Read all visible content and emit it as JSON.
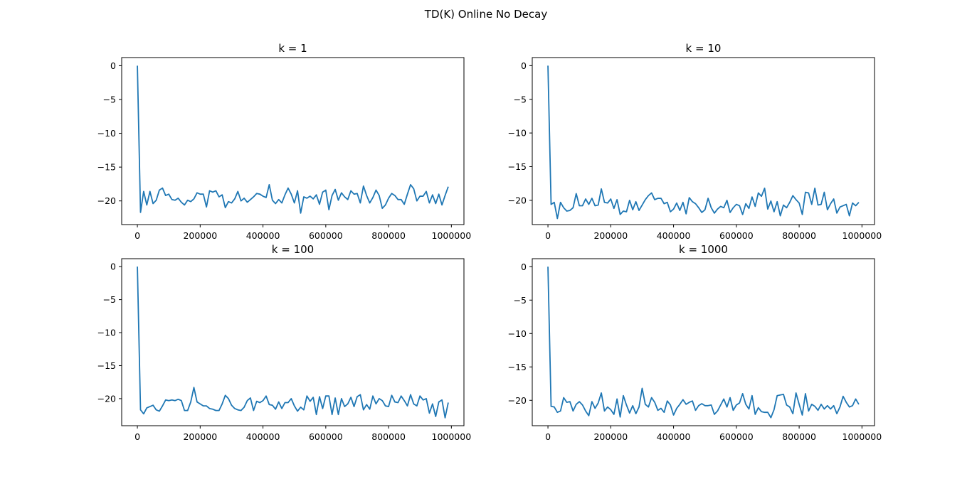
{
  "figure": {
    "title": "TD(K) Online No Decay",
    "line_color": "#1f77b4"
  },
  "chart_data": [
    {
      "type": "line",
      "title": "k = 1",
      "xlabel": "",
      "ylabel": "",
      "xlim": [
        -50000,
        1040000
      ],
      "ylim": [
        -23.5,
        1.2
      ],
      "xticks": [
        0,
        200000,
        400000,
        600000,
        800000,
        1000000
      ],
      "xtick_labels": [
        "0",
        "200000",
        "400000",
        "600000",
        "800000",
        "1000000"
      ],
      "yticks": [
        0,
        -5,
        -10,
        -15,
        -20
      ],
      "ytick_labels": [
        "0",
        "−5",
        "−10",
        "−15",
        "−20"
      ],
      "grid": false,
      "series": [
        {
          "x": [
            0,
            10000,
            20000,
            30000,
            40000,
            50000,
            60000,
            70000,
            80000,
            90000,
            100000,
            110000,
            120000,
            130000,
            140000,
            150000,
            160000,
            170000,
            180000,
            190000,
            200000,
            210000,
            220000,
            230000,
            240000,
            250000,
            260000,
            270000,
            280000,
            290000,
            300000,
            310000,
            320000,
            330000,
            340000,
            350000,
            360000,
            370000,
            380000,
            390000,
            400000,
            410000,
            420000,
            430000,
            440000,
            450000,
            460000,
            470000,
            480000,
            490000,
            500000,
            510000,
            520000,
            530000,
            540000,
            550000,
            560000,
            570000,
            580000,
            590000,
            600000,
            610000,
            620000,
            630000,
            640000,
            650000,
            660000,
            670000,
            680000,
            690000,
            700000,
            710000,
            720000,
            730000,
            740000,
            750000,
            760000,
            770000,
            780000,
            790000,
            800000,
            810000,
            820000,
            830000,
            840000,
            850000,
            860000,
            870000,
            880000,
            890000,
            900000,
            910000,
            920000,
            930000,
            940000,
            950000,
            960000,
            970000,
            980000,
            990000
          ],
          "y": [
            0,
            -21.7,
            -18.6,
            -20.6,
            -18.6,
            -20.4,
            -19.9,
            -18.4,
            -18.1,
            -19.2,
            -19.0,
            -19.8,
            -19.9,
            -19.6,
            -20.2,
            -20.6,
            -19.9,
            -20.1,
            -19.7,
            -18.8,
            -19.0,
            -19.0,
            -20.9,
            -18.5,
            -18.7,
            -18.5,
            -19.4,
            -19.1,
            -21.0,
            -20.1,
            -20.3,
            -19.7,
            -18.6,
            -20.0,
            -19.6,
            -20.2,
            -19.8,
            -19.4,
            -18.9,
            -19.0,
            -19.3,
            -19.5,
            -17.6,
            -19.9,
            -20.4,
            -19.8,
            -20.3,
            -19.1,
            -18.1,
            -19.0,
            -20.3,
            -18.5,
            -21.8,
            -19.4,
            -19.6,
            -19.3,
            -19.7,
            -19.1,
            -20.5,
            -18.7,
            -18.4,
            -21.3,
            -19.2,
            -18.3,
            -19.9,
            -18.8,
            -19.4,
            -19.8,
            -18.5,
            -19.0,
            -18.9,
            -20.3,
            -17.8,
            -19.2,
            -20.3,
            -19.5,
            -18.4,
            -19.2,
            -21.1,
            -20.6,
            -19.6,
            -18.9,
            -19.2,
            -19.8,
            -19.8,
            -20.5,
            -19.0,
            -17.6,
            -18.2,
            -20.0,
            -19.3,
            -19.3,
            -18.6,
            -20.3,
            -19.1,
            -20.4,
            -19.0,
            -20.6,
            -19.2,
            -17.9
          ]
        }
      ]
    },
    {
      "type": "line",
      "title": "k = 10",
      "xlabel": "",
      "ylabel": "",
      "xlim": [
        -50000,
        1040000
      ],
      "ylim": [
        -23.6,
        1.2
      ],
      "xticks": [
        0,
        200000,
        400000,
        600000,
        800000,
        1000000
      ],
      "xtick_labels": [
        "0",
        "200000",
        "400000",
        "600000",
        "800000",
        "1000000"
      ],
      "yticks": [
        0,
        -5,
        -10,
        -15,
        -20
      ],
      "ytick_labels": [
        "0",
        "−5",
        "−10",
        "−15",
        "−20"
      ],
      "grid": false,
      "series": [
        {
          "x": [
            0,
            10000,
            20000,
            30000,
            40000,
            50000,
            60000,
            70000,
            80000,
            90000,
            100000,
            110000,
            120000,
            130000,
            140000,
            150000,
            160000,
            170000,
            180000,
            190000,
            200000,
            210000,
            220000,
            230000,
            240000,
            250000,
            260000,
            270000,
            280000,
            290000,
            300000,
            310000,
            320000,
            330000,
            340000,
            350000,
            360000,
            370000,
            380000,
            390000,
            400000,
            410000,
            420000,
            430000,
            440000,
            450000,
            460000,
            470000,
            480000,
            490000,
            500000,
            510000,
            520000,
            530000,
            540000,
            550000,
            560000,
            570000,
            580000,
            590000,
            600000,
            610000,
            620000,
            630000,
            640000,
            650000,
            660000,
            670000,
            680000,
            690000,
            700000,
            710000,
            720000,
            730000,
            740000,
            750000,
            760000,
            770000,
            780000,
            790000,
            800000,
            810000,
            820000,
            830000,
            840000,
            850000,
            860000,
            870000,
            880000,
            890000,
            900000,
            910000,
            920000,
            930000,
            940000,
            950000,
            960000,
            970000,
            980000,
            990000
          ],
          "y": [
            0,
            -20.6,
            -20.3,
            -22.7,
            -20.3,
            -21.1,
            -21.6,
            -21.5,
            -21.1,
            -19.0,
            -20.8,
            -20.8,
            -19.8,
            -20.6,
            -19.7,
            -20.8,
            -20.7,
            -18.3,
            -20.3,
            -20.4,
            -19.8,
            -21.2,
            -19.9,
            -22.1,
            -21.6,
            -21.7,
            -20.0,
            -21.4,
            -20.2,
            -21.5,
            -20.7,
            -19.9,
            -19.3,
            -18.9,
            -19.9,
            -19.7,
            -19.7,
            -20.5,
            -20.3,
            -21.7,
            -21.3,
            -20.4,
            -21.5,
            -20.3,
            -22.0,
            -19.6,
            -20.2,
            -20.5,
            -21.1,
            -21.8,
            -21.4,
            -19.7,
            -21.1,
            -21.9,
            -21.3,
            -20.9,
            -21.1,
            -20.0,
            -21.8,
            -21.1,
            -20.6,
            -20.8,
            -22.1,
            -20.5,
            -21.2,
            -19.5,
            -20.9,
            -18.9,
            -19.4,
            -18.2,
            -21.3,
            -20.1,
            -21.7,
            -20.2,
            -22.3,
            -20.7,
            -21.1,
            -20.3,
            -19.3,
            -19.9,
            -20.4,
            -22.1,
            -18.8,
            -18.9,
            -20.6,
            -18.2,
            -20.7,
            -20.6,
            -18.8,
            -21.4,
            -20.5,
            -19.8,
            -21.9,
            -21.0,
            -20.8,
            -20.6,
            -22.3,
            -20.4,
            -20.8,
            -20.3
          ]
        }
      ]
    },
    {
      "type": "line",
      "title": "k = 100",
      "xlabel": "",
      "ylabel": "",
      "xlim": [
        -50000,
        1040000
      ],
      "ylim": [
        -24.1,
        1.2
      ],
      "xticks": [
        0,
        200000,
        400000,
        600000,
        800000,
        1000000
      ],
      "xtick_labels": [
        "0",
        "200000",
        "400000",
        "600000",
        "800000",
        "1000000"
      ],
      "yticks": [
        0,
        -5,
        -10,
        -15,
        -20
      ],
      "ytick_labels": [
        "0",
        "−5",
        "−10",
        "−15",
        "−20"
      ],
      "grid": false,
      "series": [
        {
          "x": [
            0,
            10000,
            20000,
            30000,
            40000,
            50000,
            60000,
            70000,
            80000,
            90000,
            100000,
            110000,
            120000,
            130000,
            140000,
            150000,
            160000,
            170000,
            180000,
            190000,
            200000,
            210000,
            220000,
            230000,
            240000,
            250000,
            260000,
            270000,
            280000,
            290000,
            300000,
            310000,
            320000,
            330000,
            340000,
            350000,
            360000,
            370000,
            380000,
            390000,
            400000,
            410000,
            420000,
            430000,
            440000,
            450000,
            460000,
            470000,
            480000,
            490000,
            500000,
            510000,
            520000,
            530000,
            540000,
            550000,
            560000,
            570000,
            580000,
            590000,
            600000,
            610000,
            620000,
            630000,
            640000,
            650000,
            660000,
            670000,
            680000,
            690000,
            700000,
            710000,
            720000,
            730000,
            740000,
            750000,
            760000,
            770000,
            780000,
            790000,
            800000,
            810000,
            820000,
            830000,
            840000,
            850000,
            860000,
            870000,
            880000,
            890000,
            900000,
            910000,
            920000,
            930000,
            940000,
            950000,
            960000,
            970000,
            980000,
            990000
          ],
          "y": [
            0,
            -21.7,
            -22.3,
            -21.4,
            -21.2,
            -21.0,
            -21.7,
            -21.9,
            -21.1,
            -20.2,
            -20.3,
            -20.2,
            -20.3,
            -20.1,
            -20.3,
            -21.8,
            -21.8,
            -20.5,
            -18.3,
            -20.5,
            -20.8,
            -21.1,
            -21.1,
            -21.5,
            -21.6,
            -21.8,
            -21.8,
            -20.8,
            -19.5,
            -20.0,
            -21.0,
            -21.5,
            -21.7,
            -21.8,
            -21.3,
            -20.3,
            -19.9,
            -21.8,
            -20.4,
            -20.6,
            -20.3,
            -19.6,
            -20.9,
            -21.0,
            -21.6,
            -20.5,
            -21.5,
            -20.6,
            -20.6,
            -20.0,
            -21.1,
            -21.9,
            -21.3,
            -21.7,
            -19.6,
            -20.4,
            -19.8,
            -22.4,
            -19.7,
            -21.5,
            -19.6,
            -19.6,
            -22.4,
            -19.9,
            -22.4,
            -20.0,
            -21.2,
            -20.8,
            -19.8,
            -21.2,
            -19.7,
            -19.4,
            -21.7,
            -20.9,
            -21.6,
            -19.6,
            -20.8,
            -20.0,
            -20.3,
            -21.1,
            -21.2,
            -19.5,
            -20.5,
            -20.6,
            -19.6,
            -20.3,
            -21.1,
            -19.4,
            -20.8,
            -21.1,
            -19.6,
            -20.2,
            -20.0,
            -22.2,
            -20.8,
            -22.7,
            -20.5,
            -20.2,
            -22.9,
            -20.6
          ]
        }
      ]
    },
    {
      "type": "line",
      "title": "k = 1000",
      "xlabel": "",
      "ylabel": "",
      "xlim": [
        -50000,
        1040000
      ],
      "ylim": [
        -23.8,
        1.2
      ],
      "xticks": [
        0,
        200000,
        400000,
        600000,
        800000,
        1000000
      ],
      "xtick_labels": [
        "0",
        "200000",
        "400000",
        "600000",
        "800000",
        "1000000"
      ],
      "yticks": [
        0,
        -5,
        -10,
        -15,
        -20
      ],
      "ytick_labels": [
        "0",
        "−5",
        "−10",
        "−15",
        "−20"
      ],
      "grid": false,
      "series": [
        {
          "x": [
            0,
            10000,
            20000,
            30000,
            40000,
            50000,
            60000,
            70000,
            80000,
            90000,
            100000,
            110000,
            120000,
            130000,
            140000,
            150000,
            160000,
            170000,
            180000,
            190000,
            200000,
            210000,
            220000,
            230000,
            240000,
            250000,
            260000,
            270000,
            280000,
            290000,
            300000,
            310000,
            320000,
            330000,
            340000,
            350000,
            360000,
            370000,
            380000,
            390000,
            400000,
            410000,
            420000,
            430000,
            440000,
            450000,
            460000,
            470000,
            480000,
            490000,
            500000,
            510000,
            520000,
            530000,
            540000,
            550000,
            560000,
            570000,
            580000,
            590000,
            600000,
            610000,
            620000,
            630000,
            640000,
            650000,
            660000,
            670000,
            680000,
            690000,
            700000,
            710000,
            720000,
            730000,
            740000,
            750000,
            760000,
            770000,
            780000,
            790000,
            800000,
            810000,
            820000,
            830000,
            840000,
            850000,
            860000,
            870000,
            880000,
            890000,
            900000,
            910000,
            920000,
            930000,
            940000,
            950000,
            960000,
            970000,
            980000,
            990000
          ],
          "y": [
            0,
            -20.9,
            -21.0,
            -21.8,
            -21.6,
            -19.6,
            -20.3,
            -20.2,
            -21.6,
            -20.6,
            -20.2,
            -20.7,
            -21.6,
            -22.3,
            -20.2,
            -21.2,
            -20.4,
            -18.9,
            -21.6,
            -21.0,
            -21.4,
            -22.1,
            -19.8,
            -22.5,
            -19.3,
            -20.7,
            -21.9,
            -20.8,
            -22.0,
            -21.0,
            -18.2,
            -20.6,
            -21.0,
            -19.6,
            -20.3,
            -21.5,
            -21.2,
            -21.8,
            -20.1,
            -20.7,
            -22.2,
            -21.2,
            -20.6,
            -19.9,
            -20.6,
            -20.3,
            -20.1,
            -21.5,
            -20.8,
            -20.5,
            -20.8,
            -20.8,
            -20.7,
            -22.1,
            -21.6,
            -20.7,
            -19.8,
            -21.0,
            -19.6,
            -21.5,
            -20.7,
            -20.4,
            -19.0,
            -20.6,
            -21.3,
            -19.3,
            -22.1,
            -21.1,
            -21.7,
            -21.8,
            -21.8,
            -22.6,
            -21.4,
            -19.3,
            -19.2,
            -19.1,
            -20.7,
            -21.0,
            -22.0,
            -18.9,
            -20.6,
            -22.2,
            -19.0,
            -21.6,
            -20.6,
            -20.9,
            -21.5,
            -20.6,
            -21.3,
            -20.8,
            -21.3,
            -20.8,
            -22.0,
            -21.0,
            -19.4,
            -20.3,
            -21.0,
            -20.8,
            -19.8,
            -20.6
          ]
        }
      ]
    }
  ]
}
